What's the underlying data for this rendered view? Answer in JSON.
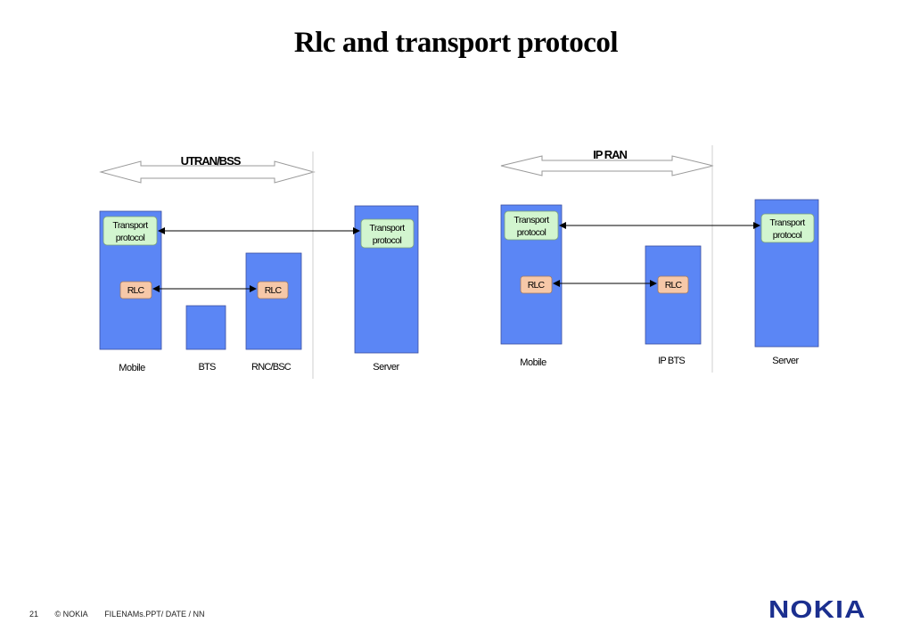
{
  "title": "Rlc and transport protocol",
  "diagram_left": {
    "region_label": "UTRAN/BSS",
    "nodes": [
      "Mobile",
      "BTS",
      "RNC/BSC",
      "Server"
    ],
    "transport_label_line1": "Transport",
    "transport_label_line2": "protocol",
    "rlc_label": "RLC"
  },
  "diagram_right": {
    "region_label": "IP RAN",
    "nodes": [
      "Mobile",
      "IP BTS",
      "Server"
    ],
    "transport_label_line1": "Transport",
    "transport_label_line2": "protocol",
    "rlc_label": "RLC"
  },
  "footer": {
    "page": "21",
    "copyright": "© NOKIA",
    "file": "FILENAMs.PPT/ DATE / NN"
  },
  "logo": "NOKIA",
  "colors": {
    "node_fill": "#5b86f5",
    "transport_fill": "#d2f5cf",
    "rlc_fill": "#f6c8a8"
  }
}
